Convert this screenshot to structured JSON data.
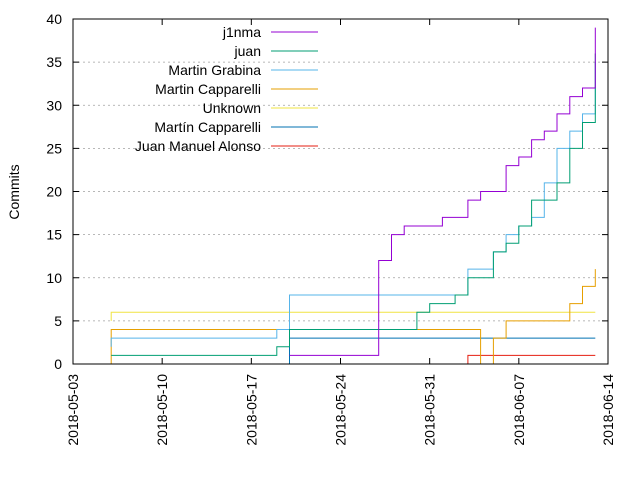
{
  "chart_data": {
    "type": "line",
    "title": "",
    "xlabel": "",
    "ylabel": "Commits",
    "x_axis_type": "date",
    "xlim": [
      "2018-05-03",
      "2018-06-14"
    ],
    "ylim": [
      0,
      40
    ],
    "x_ticks": [
      "2018-05-03",
      "2018-05-10",
      "2018-05-17",
      "2018-05-24",
      "2018-05-31",
      "2018-06-07",
      "2018-06-14"
    ],
    "y_ticks": [
      0,
      5,
      10,
      15,
      20,
      25,
      30,
      35,
      40
    ],
    "grid": "horizontal dotted",
    "legend_position": "top-right",
    "series": [
      {
        "name": "j1nma",
        "color": "#9400d3",
        "points": [
          [
            "2018-05-20",
            1
          ],
          [
            "2018-05-27",
            2
          ],
          [
            "2018-05-27",
            8
          ],
          [
            "2018-05-27",
            12
          ],
          [
            "2018-05-28",
            14
          ],
          [
            "2018-05-28",
            15
          ],
          [
            "2018-05-29",
            16
          ],
          [
            "2018-05-31",
            16
          ],
          [
            "2018-06-01",
            17
          ],
          [
            "2018-06-03",
            17
          ],
          [
            "2018-06-03",
            19
          ],
          [
            "2018-06-04",
            20
          ],
          [
            "2018-06-06",
            20
          ],
          [
            "2018-06-06",
            23
          ],
          [
            "2018-06-07",
            24
          ],
          [
            "2018-06-08",
            25
          ],
          [
            "2018-06-08",
            26
          ],
          [
            "2018-06-09",
            27
          ],
          [
            "2018-06-10",
            28
          ],
          [
            "2018-06-10",
            29
          ],
          [
            "2018-06-11",
            30
          ],
          [
            "2018-06-11",
            31
          ],
          [
            "2018-06-12",
            32
          ],
          [
            "2018-06-13",
            32
          ],
          [
            "2018-06-13",
            35
          ],
          [
            "2018-06-13",
            37
          ],
          [
            "2018-06-13",
            39
          ]
        ]
      },
      {
        "name": "juan",
        "color": "#009e73",
        "points": [
          [
            "2018-05-06",
            1
          ],
          [
            "2018-05-19",
            2
          ],
          [
            "2018-05-20",
            3
          ],
          [
            "2018-05-20",
            4
          ],
          [
            "2018-05-28",
            4
          ],
          [
            "2018-05-30",
            6
          ],
          [
            "2018-05-31",
            7
          ],
          [
            "2018-06-02",
            8
          ],
          [
            "2018-06-03",
            9
          ],
          [
            "2018-06-03",
            10
          ],
          [
            "2018-06-05",
            11
          ],
          [
            "2018-06-05",
            13
          ],
          [
            "2018-06-06",
            14
          ],
          [
            "2018-06-07",
            16
          ],
          [
            "2018-06-08",
            17
          ],
          [
            "2018-06-08",
            19
          ],
          [
            "2018-06-10",
            19
          ],
          [
            "2018-06-10",
            21
          ],
          [
            "2018-06-11",
            25
          ],
          [
            "2018-06-12",
            26
          ],
          [
            "2018-06-12",
            28
          ],
          [
            "2018-06-13",
            29
          ],
          [
            "2018-06-13",
            34
          ],
          [
            "2018-06-13",
            36
          ]
        ]
      },
      {
        "name": "Martin Grabina",
        "color": "#56b4e9",
        "points": [
          [
            "2018-05-06",
            2
          ],
          [
            "2018-05-06",
            3
          ],
          [
            "2018-05-19",
            3
          ],
          [
            "2018-05-19",
            4
          ],
          [
            "2018-05-20",
            4
          ],
          [
            "2018-05-20",
            8
          ],
          [
            "2018-06-02",
            8
          ],
          [
            "2018-06-03",
            9
          ],
          [
            "2018-06-03",
            11
          ],
          [
            "2018-06-05",
            11
          ],
          [
            "2018-06-05",
            13
          ],
          [
            "2018-06-06",
            15
          ],
          [
            "2018-06-07",
            16
          ],
          [
            "2018-06-08",
            17
          ],
          [
            "2018-06-09",
            21
          ],
          [
            "2018-06-10",
            23
          ],
          [
            "2018-06-10",
            25
          ],
          [
            "2018-06-11",
            25
          ],
          [
            "2018-06-11",
            27
          ],
          [
            "2018-06-12",
            29
          ],
          [
            "2018-06-13",
            30
          ],
          [
            "2018-06-13",
            34
          ],
          [
            "2018-06-13",
            35
          ]
        ]
      },
      {
        "name": "Martin Capparelli",
        "color": "#e69f00",
        "points": [
          [
            "2018-05-06",
            0
          ],
          [
            "2018-05-06",
            3
          ],
          [
            "2018-05-06",
            4
          ],
          [
            "2018-06-04",
            0
          ],
          [
            "2018-06-05",
            2
          ],
          [
            "2018-06-05",
            3
          ],
          [
            "2018-06-06",
            3
          ],
          [
            "2018-06-06",
            5
          ],
          [
            "2018-06-11",
            5
          ],
          [
            "2018-06-11",
            7
          ],
          [
            "2018-06-12",
            7
          ],
          [
            "2018-06-12",
            9
          ],
          [
            "2018-06-13",
            9
          ],
          [
            "2018-06-13",
            11
          ]
        ]
      },
      {
        "name": "Unknown",
        "color": "#f0e442",
        "points": [
          [
            "2018-05-06",
            5
          ],
          [
            "2018-05-06",
            6
          ],
          [
            "2018-06-13",
            6
          ]
        ]
      },
      {
        "name": "Martín Capparelli",
        "color": "#0072b2",
        "points": [
          [
            "2018-05-20",
            0
          ],
          [
            "2018-05-20",
            3
          ],
          [
            "2018-06-13",
            3
          ]
        ]
      },
      {
        "name": "Juan Manuel Alonso",
        "color": "#e51e10",
        "points": [
          [
            "2018-06-03",
            0
          ],
          [
            "2018-06-03",
            1
          ],
          [
            "2018-06-13",
            1
          ]
        ]
      }
    ]
  }
}
